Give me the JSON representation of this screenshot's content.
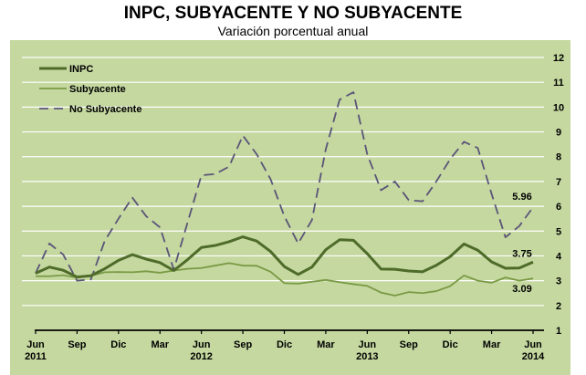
{
  "chart_data": {
    "type": "line",
    "title": "INPC, SUBYACENTE Y NO SUBYACENTE",
    "subtitle": "Variación porcentual anual",
    "xlabel": "",
    "ylabel": "",
    "ylim": [
      1,
      12
    ],
    "yticks": [
      1,
      2,
      3,
      4,
      5,
      6,
      7,
      8,
      9,
      10,
      11,
      12
    ],
    "y_axis_side": "right",
    "grid": true,
    "legend_position": "top-left",
    "background_color": "#c5d8a0",
    "x_tick_labels": [
      {
        "month": "Jun",
        "year": "2011"
      },
      {
        "month": "Sep",
        "year": ""
      },
      {
        "month": "Dic",
        "year": ""
      },
      {
        "month": "Mar",
        "year": ""
      },
      {
        "month": "Jun",
        "year": "2012"
      },
      {
        "month": "Sep",
        "year": ""
      },
      {
        "month": "Dic",
        "year": ""
      },
      {
        "month": "Mar",
        "year": ""
      },
      {
        "month": "Jun",
        "year": "2013"
      },
      {
        "month": "Sep",
        "year": ""
      },
      {
        "month": "Dic",
        "year": ""
      },
      {
        "month": "Mar",
        "year": ""
      },
      {
        "month": "Jun",
        "year": "2014"
      }
    ],
    "x_range": [
      "Jun 2011",
      "Jun 2014"
    ],
    "x_step": "monthly",
    "series": [
      {
        "name": "INPC",
        "color": "#4e6b2a",
        "style": "solid-thick",
        "end_label": "3.75",
        "values": [
          3.3,
          3.55,
          3.42,
          3.15,
          3.2,
          3.48,
          3.82,
          4.05,
          3.87,
          3.73,
          3.41,
          3.85,
          4.34,
          4.42,
          4.57,
          4.77,
          4.6,
          4.18,
          3.57,
          3.25,
          3.55,
          4.25,
          4.65,
          4.63,
          4.09,
          3.47,
          3.46,
          3.39,
          3.36,
          3.62,
          3.97,
          4.48,
          4.23,
          3.76,
          3.5,
          3.51,
          3.75
        ]
      },
      {
        "name": "Subyacente",
        "color": "#7a9a45",
        "style": "solid-thin",
        "end_label": "3.09",
        "values": [
          3.18,
          3.18,
          3.22,
          3.12,
          3.2,
          3.34,
          3.35,
          3.34,
          3.38,
          3.32,
          3.41,
          3.48,
          3.51,
          3.61,
          3.71,
          3.61,
          3.6,
          3.36,
          2.9,
          2.88,
          2.96,
          3.03,
          2.94,
          2.86,
          2.79,
          2.52,
          2.4,
          2.54,
          2.5,
          2.58,
          2.78,
          3.21,
          3.0,
          2.92,
          3.13,
          3.0,
          3.09
        ]
      },
      {
        "name": "No Subyacente",
        "color": "#5a5478",
        "style": "dashed",
        "end_label": "5.96",
        "values": [
          3.3,
          4.5,
          4.05,
          3.0,
          3.05,
          4.6,
          5.5,
          6.35,
          5.6,
          5.15,
          3.45,
          5.35,
          7.25,
          7.3,
          7.6,
          8.85,
          8.1,
          7.1,
          5.6,
          4.5,
          5.45,
          8.3,
          10.3,
          10.6,
          8.1,
          6.65,
          7.0,
          6.25,
          6.2,
          7.0,
          7.9,
          8.6,
          8.35,
          6.5,
          4.75,
          5.2,
          5.96
        ]
      }
    ]
  }
}
